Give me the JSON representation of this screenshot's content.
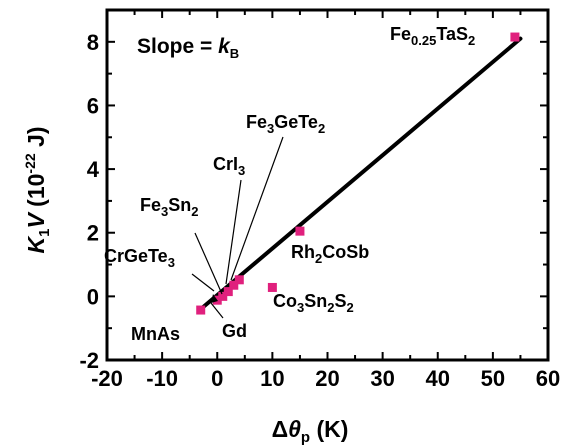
{
  "chart_data": {
    "type": "scatter",
    "xlim": [
      -20,
      60
    ],
    "ylim": [
      -2,
      9
    ],
    "x_ticks": [
      -20,
      -10,
      0,
      10,
      20,
      30,
      40,
      50,
      60
    ],
    "y_ticks": [
      -2,
      0,
      2,
      4,
      6,
      8
    ],
    "grid": false,
    "xlabel": {
      "delta": "Δ",
      "theta": "θ",
      "sub": "p",
      "unit": " (K)"
    },
    "ylabel": {
      "k": "K",
      "k_sub": "1",
      "v": "V",
      "unit_open": " (10",
      "unit_exp": "-22",
      "unit_close": " J)"
    },
    "slope_annotation": {
      "text": "Slope = ",
      "k": "k",
      "sub": "B"
    },
    "fit_line": {
      "x": [
        -3,
        55
      ],
      "y": [
        -0.4,
        8.1
      ]
    },
    "points": [
      {
        "x": 54,
        "y": 8.15
      },
      {
        "x": 15,
        "y": 2.05
      },
      {
        "x": 10,
        "y": 0.28
      },
      {
        "x": -3,
        "y": -0.43
      },
      {
        "x": 0,
        "y": -0.12
      },
      {
        "x": 1,
        "y": 0.0
      },
      {
        "x": 2,
        "y": 0.15
      },
      {
        "x": 3,
        "y": 0.35
      },
      {
        "x": 4,
        "y": 0.52
      }
    ],
    "point_color": "#e0207d",
    "labels": [
      {
        "id": "fe025tas2",
        "parts": [
          [
            "Fe",
            ""
          ],
          [
            "0.25",
            "sub"
          ],
          [
            "TaS",
            ""
          ],
          [
            "2",
            "sub"
          ]
        ]
      },
      {
        "id": "fe3gete2",
        "parts": [
          [
            "Fe",
            ""
          ],
          [
            "3",
            "sub"
          ],
          [
            "GeTe",
            ""
          ],
          [
            "2",
            "sub"
          ]
        ]
      },
      {
        "id": "cri3",
        "parts": [
          [
            "CrI",
            ""
          ],
          [
            "3",
            "sub"
          ]
        ]
      },
      {
        "id": "fe3sn2",
        "parts": [
          [
            "Fe",
            ""
          ],
          [
            "3",
            "sub"
          ],
          [
            "Sn",
            ""
          ],
          [
            "2",
            "sub"
          ]
        ]
      },
      {
        "id": "crgete3",
        "parts": [
          [
            "CrGeTe",
            ""
          ],
          [
            "3",
            "sub"
          ]
        ]
      },
      {
        "id": "rh2cosb",
        "parts": [
          [
            "Rh",
            ""
          ],
          [
            "2",
            "sub"
          ],
          [
            "CoSb",
            ""
          ]
        ]
      },
      {
        "id": "co3sn2s2",
        "parts": [
          [
            "Co",
            ""
          ],
          [
            "3",
            "sub"
          ],
          [
            "Sn",
            ""
          ],
          [
            "2",
            "sub"
          ],
          [
            "S",
            ""
          ],
          [
            "2",
            "sub"
          ]
        ]
      },
      {
        "id": "mnas",
        "parts": [
          [
            "MnAs",
            ""
          ]
        ]
      },
      {
        "id": "gd",
        "parts": [
          [
            "Gd",
            ""
          ]
        ]
      }
    ]
  }
}
